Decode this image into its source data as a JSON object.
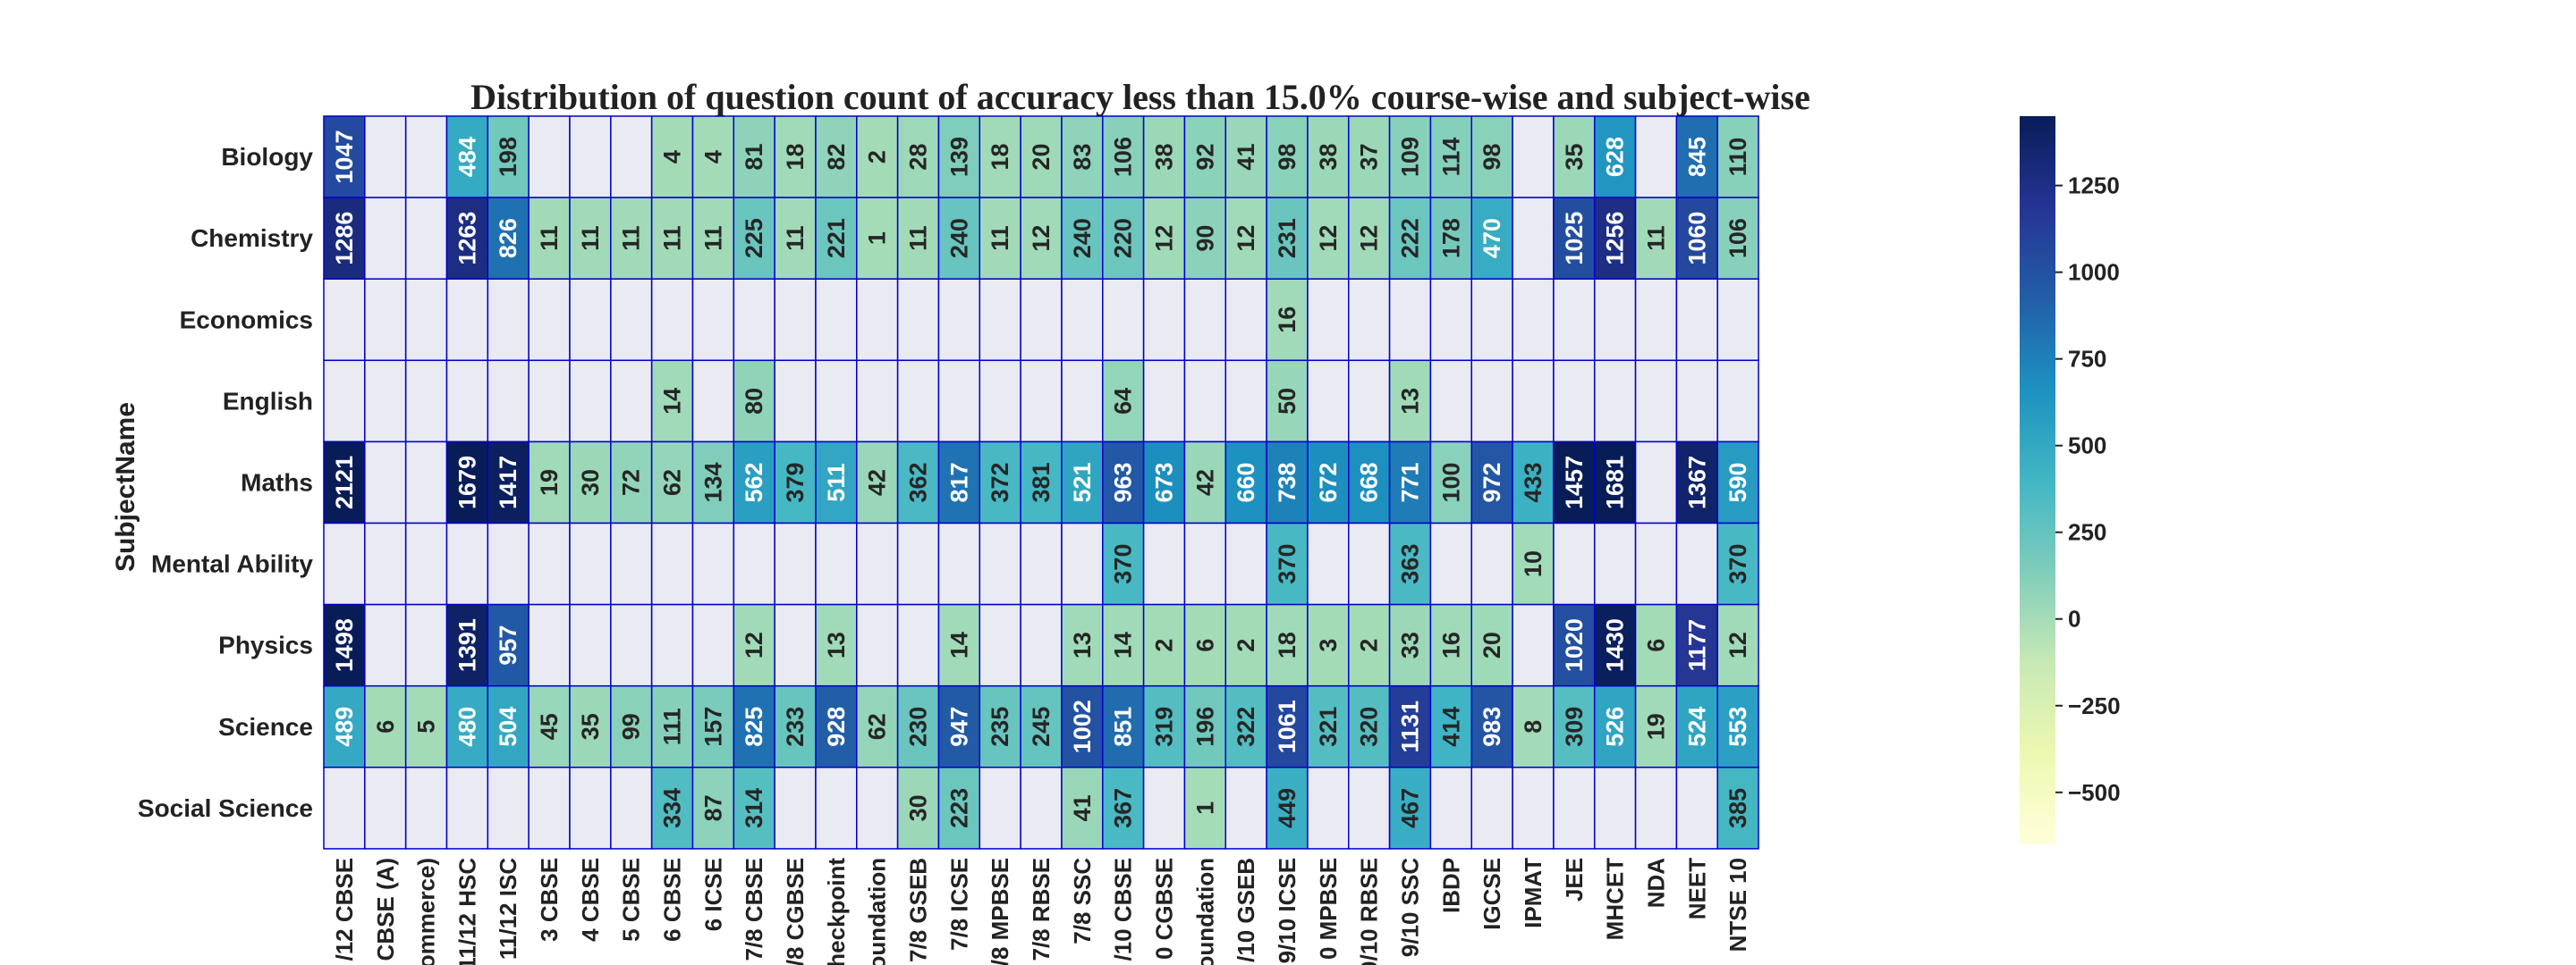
{
  "chart_data": {
    "type": "heatmap",
    "title": "Distribution of question count of accuracy less than 15.0% course-wise and subject-wise",
    "ylabel": "SubjectName",
    "xlabel": "",
    "rows": [
      "Biology",
      "Chemistry",
      "Economics",
      "English",
      "Maths",
      "Mental Ability",
      "Physics",
      "Science",
      "Social Science"
    ],
    "columns": [
      "/12 CBSE",
      "CBSE (A)",
      "ommerce)",
      "11/12 HSC",
      "11/12 ISC",
      "3 CBSE",
      "4 CBSE",
      "5 CBSE",
      "6 CBSE",
      "6 ICSE",
      "7/8 CBSE",
      "/8 CGBSE",
      "heckpoint",
      "oundation",
      "7/8 GSEB",
      "7/8 ICSE",
      "/8 MPBSE",
      "7/8 RBSE",
      "7/8 SSC",
      "/10 CBSE",
      "0 CGBSE",
      "oundation",
      "/10 GSEB",
      "9/10 ICSE",
      "0 MPBSE",
      "0/10 RBSE",
      "9/10 SSC",
      "IBDP",
      "IGCSE",
      "IPMAT",
      "JEE",
      "MHCET",
      "NDA",
      "NEET",
      "NTSE 10"
    ],
    "values": [
      [
        1047,
        null,
        null,
        484,
        198,
        null,
        null,
        null,
        4,
        4,
        81,
        18,
        82,
        2,
        28,
        139,
        18,
        20,
        83,
        106,
        38,
        92,
        41,
        98,
        38,
        37,
        109,
        114,
        98,
        null,
        35,
        628,
        null,
        845,
        110
      ],
      [
        1286,
        null,
        null,
        1263,
        826,
        11,
        11,
        11,
        11,
        11,
        225,
        11,
        221,
        1,
        11,
        240,
        11,
        12,
        240,
        220,
        12,
        90,
        12,
        231,
        12,
        12,
        222,
        178,
        470,
        null,
        1025,
        1256,
        11,
        1060,
        106
      ],
      [
        null,
        null,
        null,
        null,
        null,
        null,
        null,
        null,
        null,
        null,
        null,
        null,
        null,
        null,
        null,
        null,
        null,
        null,
        null,
        null,
        null,
        null,
        null,
        16,
        null,
        null,
        null,
        null,
        null,
        null,
        null,
        null,
        null,
        null,
        null
      ],
      [
        null,
        null,
        null,
        null,
        null,
        null,
        null,
        null,
        14,
        null,
        80,
        null,
        null,
        null,
        null,
        null,
        null,
        null,
        null,
        64,
        null,
        null,
        null,
        50,
        null,
        null,
        13,
        null,
        null,
        null,
        null,
        null,
        null,
        null,
        null
      ],
      [
        2121,
        null,
        null,
        1679,
        1417,
        19,
        30,
        72,
        62,
        134,
        562,
        379,
        511,
        42,
        362,
        817,
        372,
        381,
        521,
        963,
        673,
        42,
        660,
        738,
        672,
        668,
        771,
        100,
        972,
        433,
        1457,
        1681,
        null,
        1367,
        590
      ],
      [
        null,
        null,
        null,
        null,
        null,
        null,
        null,
        null,
        null,
        null,
        null,
        null,
        null,
        null,
        null,
        null,
        null,
        null,
        null,
        370,
        null,
        null,
        null,
        370,
        null,
        null,
        363,
        null,
        null,
        10,
        null,
        null,
        null,
        null,
        370
      ],
      [
        1498,
        null,
        null,
        1391,
        957,
        null,
        null,
        null,
        null,
        null,
        12,
        null,
        13,
        null,
        null,
        14,
        null,
        null,
        13,
        14,
        2,
        6,
        2,
        18,
        3,
        2,
        33,
        16,
        20,
        null,
        1020,
        1430,
        6,
        1177,
        12
      ],
      [
        489,
        6,
        5,
        480,
        504,
        45,
        35,
        99,
        111,
        157,
        825,
        233,
        928,
        62,
        230,
        947,
        235,
        245,
        1002,
        851,
        319,
        196,
        322,
        1061,
        321,
        320,
        1131,
        414,
        983,
        8,
        309,
        526,
        19,
        524,
        553
      ],
      [
        null,
        null,
        null,
        null,
        null,
        null,
        null,
        null,
        334,
        87,
        314,
        null,
        null,
        null,
        30,
        223,
        null,
        null,
        41,
        367,
        null,
        1,
        null,
        449,
        null,
        null,
        467,
        null,
        null,
        null,
        null,
        null,
        null,
        null,
        385
      ]
    ],
    "colorbar": {
      "vmin": -650,
      "vmax": 1450,
      "ticks": [
        1250,
        1000,
        750,
        500,
        250,
        0,
        -250,
        -500
      ],
      "colormap": [
        "#ffffd9",
        "#edf8b1",
        "#c7e9b4",
        "#7fcdbb",
        "#41b6c4",
        "#1d91c0",
        "#225ea8",
        "#253494",
        "#081d58"
      ]
    },
    "missing_color": "#eaeaf2",
    "grid_color": "#0000cc"
  }
}
